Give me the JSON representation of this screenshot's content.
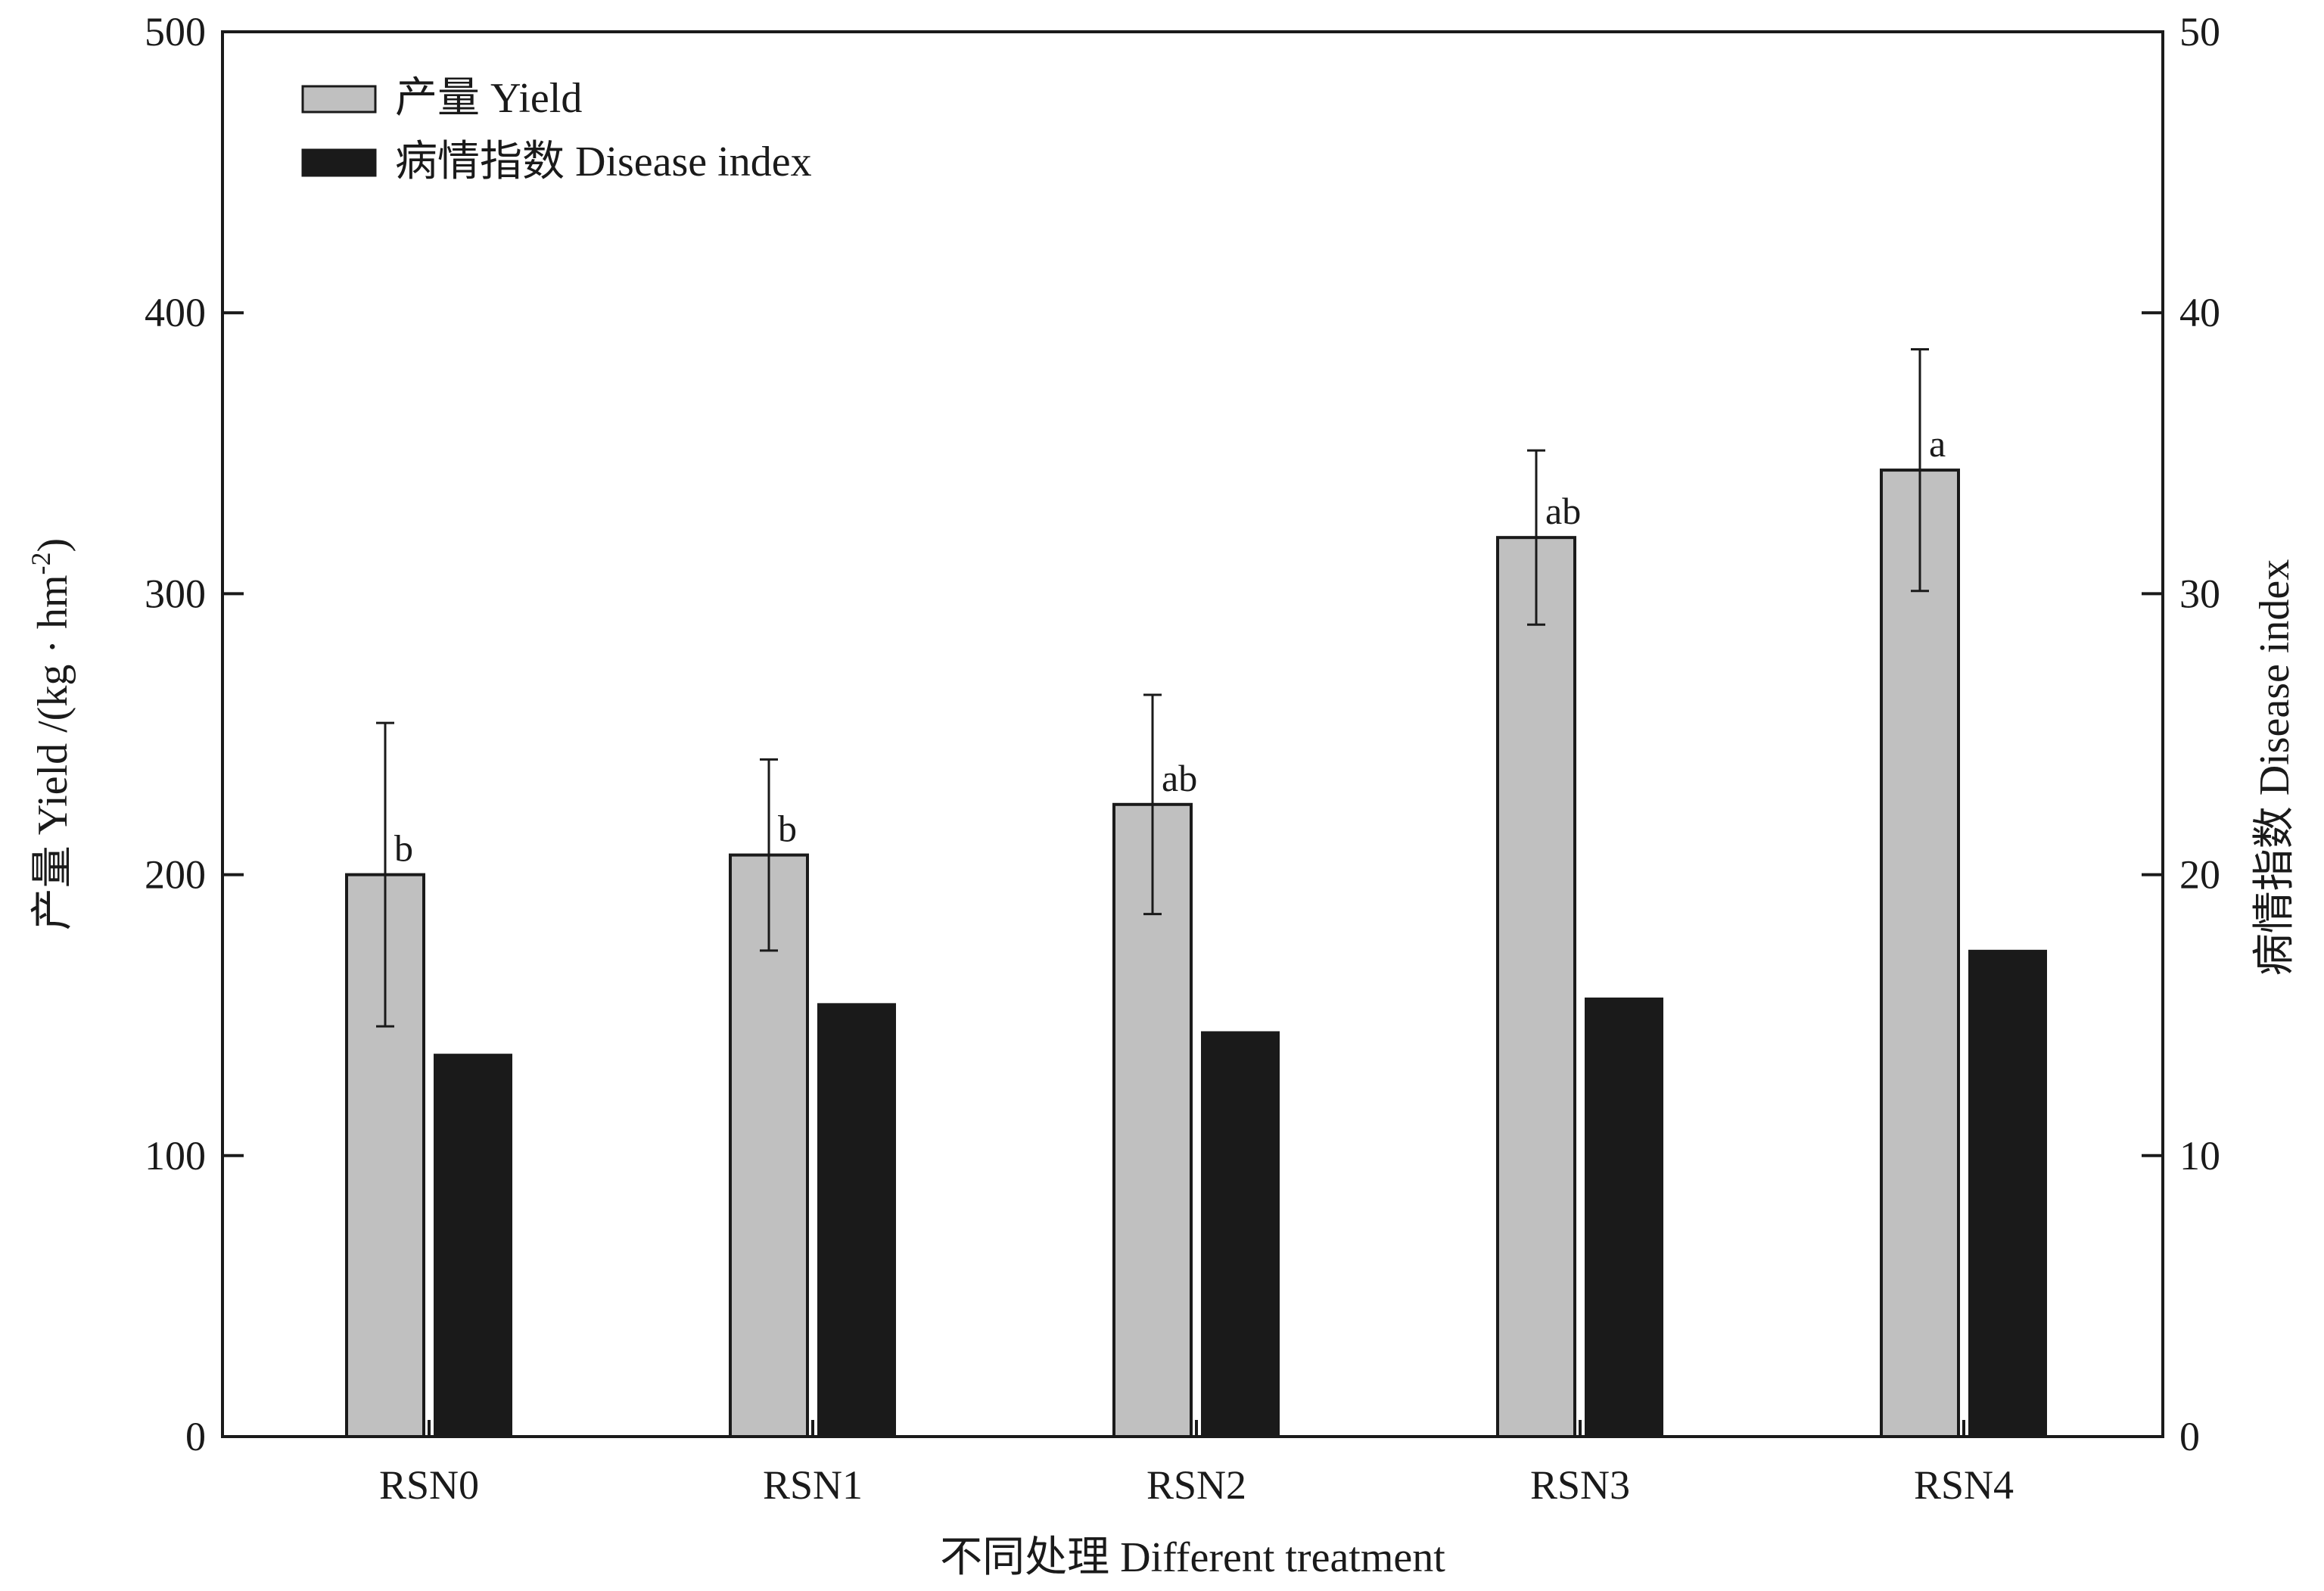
{
  "chart_data": {
    "type": "bar",
    "categories": [
      "RSN0",
      "RSN1",
      "RSN2",
      "RSN3",
      "RSN4"
    ],
    "series": [
      {
        "name": "产量 Yield",
        "axis": "left",
        "color": "#c0c0c0",
        "values": [
          200,
          207,
          225,
          320,
          344
        ],
        "error": [
          54,
          34,
          39,
          31,
          43
        ],
        "significance": [
          "b",
          "b",
          "ab",
          "ab",
          "a"
        ]
      },
      {
        "name": "病情指数 Disease index",
        "axis": "right",
        "color": "#1a1a1a",
        "values": [
          13.6,
          15.4,
          14.4,
          15.6,
          17.3
        ]
      }
    ],
    "xlabel": "不同处理 Different treatment",
    "ylabel": "产量 Yield /(kg · hm",
    "ylabel_sup": "-2",
    "ylabel_tail": ")",
    "y2label": "病情指数 Disease index",
    "ylim": [
      0,
      500
    ],
    "y2lim": [
      0,
      50
    ],
    "yticks": [
      0,
      100,
      200,
      300,
      400,
      500
    ],
    "y2ticks": [
      0,
      10,
      20,
      30,
      40,
      50
    ],
    "grid": false,
    "legend_position": "top-left"
  }
}
